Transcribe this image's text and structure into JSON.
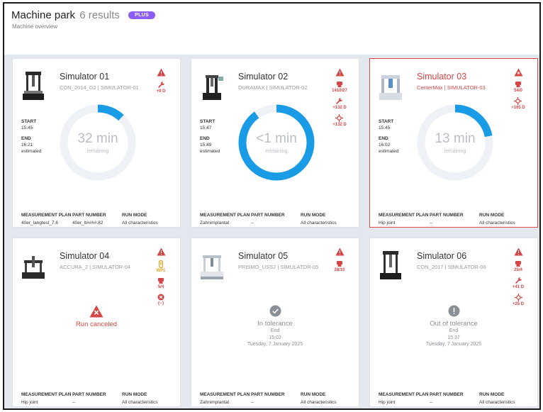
{
  "header": {
    "title": "Machine park",
    "count": "6 results",
    "badge": "PLUS",
    "subtitle": "Machine overview"
  },
  "labels": {
    "start": "START",
    "end": "END",
    "estimated": "estimated",
    "remaining": "remaining",
    "plan": "MEASUREMENT PLAN",
    "part": "PART NUMBER",
    "mode": "RUN MODE"
  },
  "colors": {
    "accent": "#1a9be6",
    "alert": "#d64545",
    "badge": "#8b5cf6",
    "warning": "#e0a020"
  },
  "machines": [
    {
      "name": "Simulator 01",
      "sub": "CON_2014_G2 | SIMULATOR-01",
      "start": "15:45",
      "end": "16:21",
      "ring_value": "32 min",
      "progress": 0.12,
      "indicators": [
        {
          "icon": "warning-triangle-icon",
          "value": ""
        },
        {
          "icon": "wrench-icon",
          "value": "+9 D"
        }
      ],
      "plan": "40er_langtest_7.6",
      "part": "40er_lt####.82",
      "mode": "All characteristics"
    },
    {
      "name": "Simulator 02",
      "sub": "DURAMAX | SIMULATOR-02",
      "start": "15:47",
      "end": "15:49",
      "ring_value": "<1 min",
      "progress": 0.9,
      "indicators": [
        {
          "icon": "warning-triangle-icon",
          "value": ""
        },
        {
          "icon": "part-icon",
          "value": "1410/27"
        },
        {
          "icon": "wrench-icon",
          "value": "+132 D"
        },
        {
          "icon": "probe-icon",
          "value": "+132 D"
        }
      ],
      "plan": "Zahnimplantat",
      "part": "--",
      "mode": "All characteristics"
    },
    {
      "name": "Simulator 03",
      "sub": "CenterMax | SIMULATOR-03",
      "start": "15:45",
      "end": "16:02",
      "ring_value": "13 min",
      "progress": 0.22,
      "indicators": [
        {
          "icon": "error-triangle-icon",
          "value": ""
        },
        {
          "icon": "part-icon",
          "value": "54/0"
        },
        {
          "icon": "probe-icon",
          "value": "+165 D"
        }
      ],
      "plan": "Hip joint",
      "part": "--",
      "mode": "All characteristics"
    },
    {
      "name": "Simulator 04",
      "sub": "ACCURA_2 | SIMULATOR-04",
      "status": "Run canceled",
      "indicators": [
        {
          "icon": "warning-triangle-icon",
          "value": ""
        },
        {
          "icon": "clamp-icon",
          "value": "WP1"
        },
        {
          "icon": "part-icon",
          "value": "5/4"
        },
        {
          "icon": "error-circle-icon",
          "value": "(--)"
        }
      ],
      "plan": "Hip joint",
      "part": "--",
      "mode": "All characteristics"
    },
    {
      "name": "Simulator 05",
      "sub": "PRISMO_USS2 | SIMULATOR-05",
      "status": "In tolerance",
      "end_label": "End",
      "end_time": "15:02",
      "end_date": "Tuesday, 7 January 2025",
      "indicators": [
        {
          "icon": "warning-triangle-icon",
          "value": ""
        },
        {
          "icon": "part-icon",
          "value": "28/10"
        }
      ],
      "plan": "Zahnimplantat",
      "part": "--",
      "mode": "All characteristics"
    },
    {
      "name": "Simulator 06",
      "sub": "CON_2017 | SIMULATOR-06",
      "status": "Out of tolerance",
      "end_label": "End",
      "end_time": "15:37",
      "end_date": "Tuesday, 7 January 2025",
      "indicators": [
        {
          "icon": "warning-triangle-icon",
          "value": ""
        },
        {
          "icon": "part-icon",
          "value": "25/4"
        },
        {
          "icon": "wrench-icon",
          "value": "+41 D"
        },
        {
          "icon": "probe-icon",
          "value": "+25 D"
        }
      ],
      "plan": "Hip joint",
      "part": "--",
      "mode": "All characteristics"
    }
  ]
}
